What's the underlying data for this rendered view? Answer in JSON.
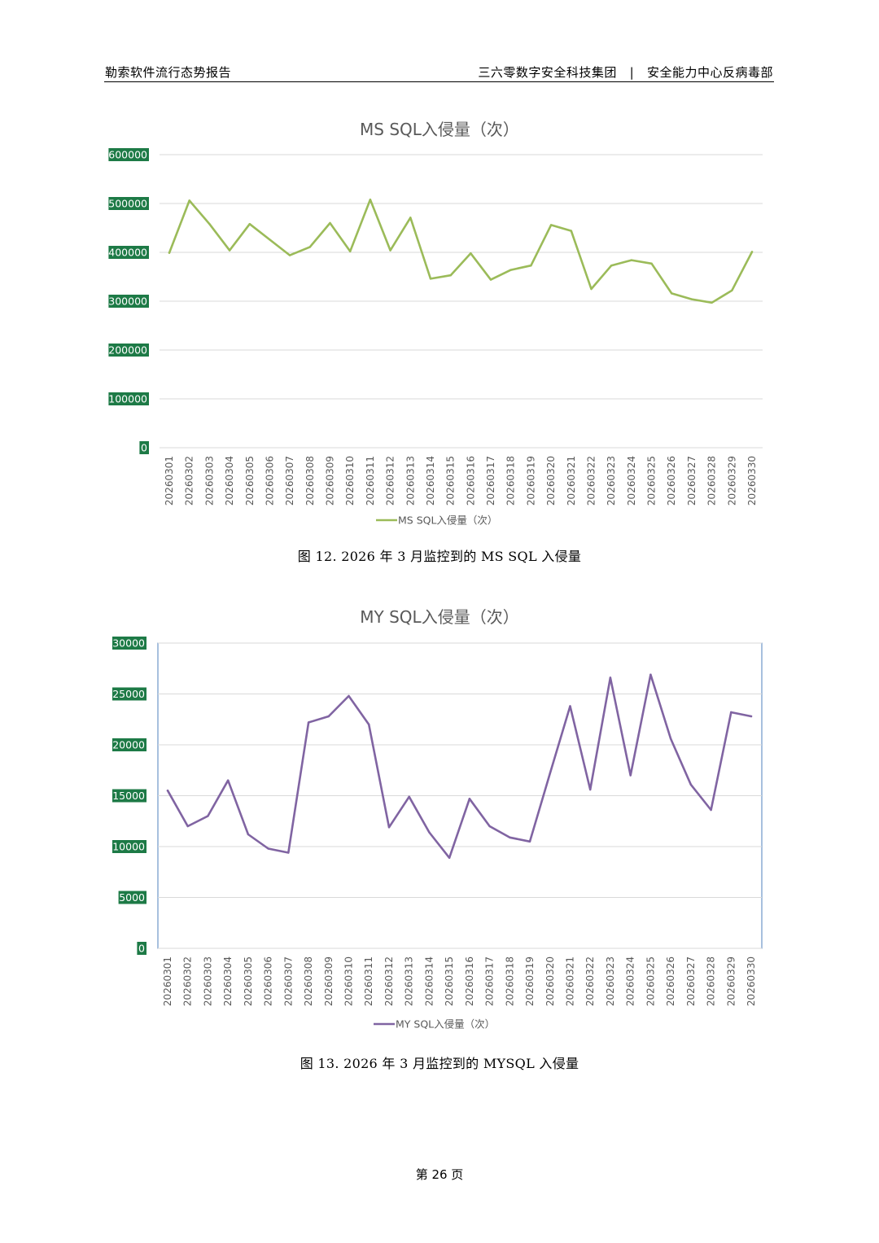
{
  "header": {
    "left_title": "勒索软件流行态势报告",
    "right_title": "三六零数字安全科技集团   |   安全能力中心反病毒部"
  },
  "figures": [
    {
      "caption": "图 12. 2026 年 3 月监控到的 MS SQL 入侵量",
      "line_color": "#9bbb59"
    },
    {
      "caption": "图 13. 2026 年 3 月监控到的 MYSQL 入侵量",
      "line_color": "#8064a2"
    }
  ],
  "page_number": "第 26 页",
  "colors": {
    "tick_highlight": "#1d7a46",
    "grid": "#d9d9d9",
    "plot_border": "#4f81bd"
  },
  "chart_data": [
    {
      "type": "line",
      "title": "MS SQL入侵量（次）",
      "categories": [
        "20260301",
        "20260302",
        "20260303",
        "20260304",
        "20260305",
        "20260306",
        "20260307",
        "20260308",
        "20260309",
        "20260310",
        "20260311",
        "20260312",
        "20260313",
        "20260314",
        "20260315",
        "20260316",
        "20260317",
        "20260318",
        "20260319",
        "20260320",
        "20260321",
        "20260322",
        "20260323",
        "20260324",
        "20260325",
        "20260326",
        "20260327",
        "20260328",
        "20260329",
        "20260330"
      ],
      "series": [
        {
          "name": "MS SQL入侵量（次）",
          "values": [
            399000,
            506000,
            458000,
            404000,
            458000,
            426000,
            394000,
            411000,
            460000,
            402000,
            508000,
            404000,
            471000,
            346000,
            353000,
            398000,
            344000,
            364000,
            373000,
            456000,
            444000,
            325000,
            373000,
            384000,
            377000,
            316000,
            304000,
            297000,
            322000,
            401000
          ]
        }
      ],
      "yticks": [
        "600000",
        "500000",
        "400000",
        "300000",
        "200000",
        "100000",
        "0"
      ],
      "ylim": [
        0,
        600000
      ],
      "grid": true,
      "legend": "bottom",
      "plot_border": false
    },
    {
      "type": "line",
      "title": "MY SQL入侵量（次）",
      "categories": [
        "20260301",
        "20260302",
        "20260303",
        "20260304",
        "20260305",
        "20260306",
        "20260307",
        "20260308",
        "20260309",
        "20260310",
        "20260311",
        "20260312",
        "20260313",
        "20260314",
        "20260315",
        "20260316",
        "20260317",
        "20260318",
        "20260319",
        "20260320",
        "20260321",
        "20260322",
        "20260323",
        "20260324",
        "20260325",
        "20260326",
        "20260327",
        "20260328",
        "20260329",
        "20260330"
      ],
      "series": [
        {
          "name": "MY SQL入侵量（次）",
          "values": [
            15500,
            12000,
            13000,
            16500,
            11200,
            9800,
            9400,
            22200,
            22800,
            24800,
            22000,
            11900,
            14900,
            11400,
            8900,
            14700,
            12000,
            10900,
            10500,
            17200,
            23800,
            15600,
            26600,
            17000,
            26900,
            20600,
            16100,
            13600,
            23200,
            22800
          ]
        }
      ],
      "yticks": [
        "30000",
        "25000",
        "20000",
        "15000",
        "10000",
        "5000",
        "0"
      ],
      "ylim": [
        0,
        30000
      ],
      "grid": true,
      "legend": "bottom",
      "plot_border": true
    }
  ]
}
